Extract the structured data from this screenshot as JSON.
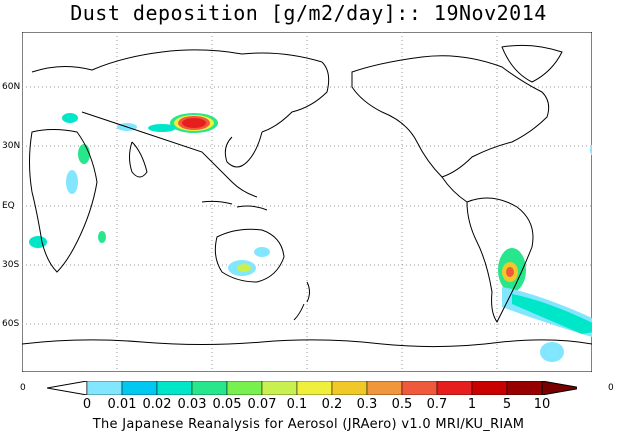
{
  "title": "Dust deposition [g/m2/day]:: 19Nov2014",
  "lat_labels": [
    "60N",
    "30N",
    "EQ",
    "30S",
    "60S"
  ],
  "corner_left": "0",
  "corner_right": "0",
  "colorbar": {
    "labels": [
      "0",
      "0.01",
      "0.02",
      "0.03",
      "0.05",
      "0.07",
      "0.1",
      "0.2",
      "0.3",
      "0.5",
      "0.7",
      "1",
      "5",
      "10"
    ],
    "colors": [
      "#ffffff",
      "#82e6ff",
      "#00c8f0",
      "#00e6c8",
      "#28e68c",
      "#78f050",
      "#c8f050",
      "#f0f03c",
      "#f0c828",
      "#f0963c",
      "#f05a3c",
      "#e61e1e",
      "#c80000",
      "#960000",
      "#780000"
    ]
  },
  "footer": "The Japanese Reanalysis for Aerosol (JRAero) v1.0 MRI/KU_RIAM"
}
